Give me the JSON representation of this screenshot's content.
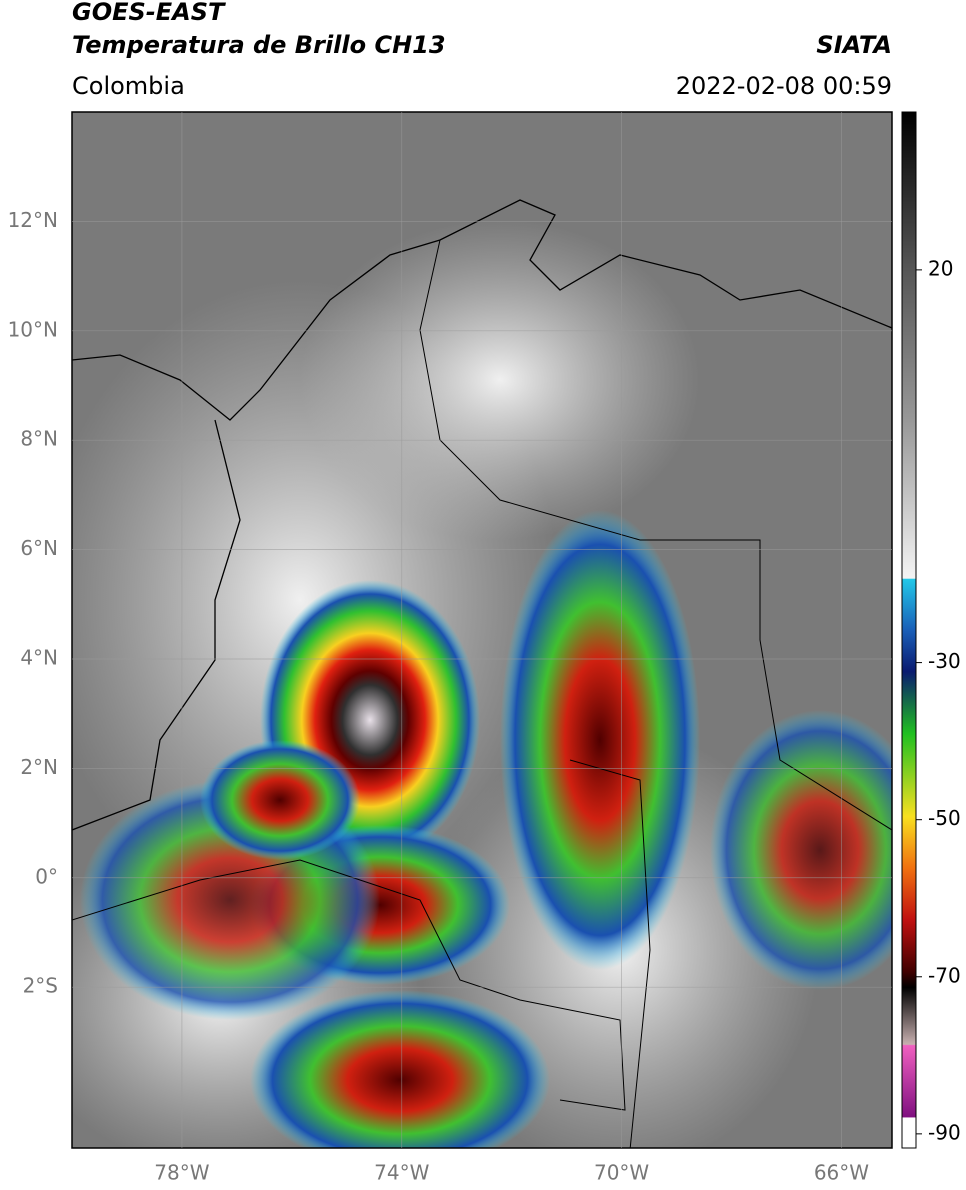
{
  "header": {
    "title": "GOES-EAST",
    "subtitle": "Temperatura de Brillo CH13",
    "source": "SIATA",
    "region": "Colombia",
    "datetime": "2022-02-08 00:59"
  },
  "map": {
    "lat_lim": [
      -4.94,
      14.0
    ],
    "lon_lim": [
      -80.0,
      -65.08
    ],
    "lat_ticks": [
      {
        "value": 12,
        "label": "12°N"
      },
      {
        "value": 10,
        "label": "10°N"
      },
      {
        "value": 8,
        "label": "8°N"
      },
      {
        "value": 6,
        "label": "6°N"
      },
      {
        "value": 4,
        "label": "4°N"
      },
      {
        "value": 2,
        "label": "2°N"
      },
      {
        "value": 0,
        "label": "0°"
      },
      {
        "value": -2,
        "label": "2°S"
      }
    ],
    "lon_ticks": [
      {
        "value": -78,
        "label": "78°W"
      },
      {
        "value": -74,
        "label": "74°W"
      },
      {
        "value": -70,
        "label": "70°W"
      },
      {
        "value": -66,
        "label": "66°W"
      }
    ]
  },
  "colorbar": {
    "lim": [
      -91.8,
      40.1
    ],
    "ticks": [
      20,
      -30,
      -50,
      -70,
      -90
    ]
  }
}
